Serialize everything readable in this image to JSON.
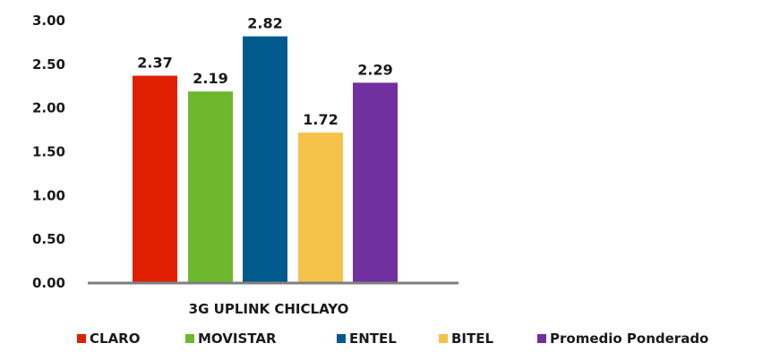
{
  "chart_data": {
    "type": "bar",
    "categories": [
      "3G UPLINK CHICLAYO"
    ],
    "series": [
      {
        "name": "CLARO",
        "values": [
          2.37
        ],
        "color": "#e02000"
      },
      {
        "name": "MOVISTAR",
        "values": [
          2.19
        ],
        "color": "#6db82d"
      },
      {
        "name": "ENTEL",
        "values": [
          2.82
        ],
        "color": "#005a8c"
      },
      {
        "name": "BITEL",
        "values": [
          1.72
        ],
        "color": "#f5c24a"
      },
      {
        "name": "Promedio Ponderado",
        "values": [
          2.29
        ],
        "color": "#7030a0"
      }
    ],
    "yticks": [
      "0.00",
      "0.50",
      "1.00",
      "1.50",
      "2.00",
      "2.50",
      "3.00"
    ],
    "data_labels": [
      "2.37",
      "2.19",
      "2.82",
      "1.72",
      "2.29"
    ],
    "ylim": [
      0,
      3
    ],
    "grid": false,
    "legend_position": "bottom"
  }
}
